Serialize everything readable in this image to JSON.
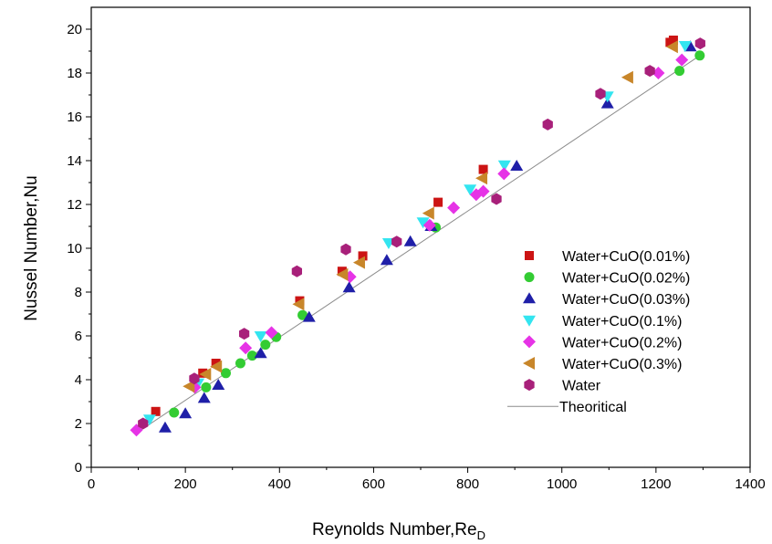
{
  "chart_data": {
    "type": "scatter",
    "xlabel": "Reynolds Number,Re",
    "xlabel_subscript": "D",
    "ylabel": "Nussel Number,Nu",
    "xlim": [
      0,
      1400
    ],
    "ylim": [
      0,
      21
    ],
    "x_ticks": [
      0,
      200,
      400,
      600,
      800,
      1000,
      1200,
      1400
    ],
    "y_ticks": [
      0,
      2,
      4,
      6,
      8,
      10,
      12,
      14,
      16,
      18,
      20
    ],
    "legend_position": "right",
    "grid": false,
    "series": [
      {
        "name": "Water+CuO(0.01%)",
        "marker": "square",
        "color": "#cc1414",
        "points": [
          [
            137,
            2.55
          ],
          [
            237,
            4.3
          ],
          [
            265,
            4.75
          ],
          [
            443,
            7.6
          ],
          [
            533,
            8.95
          ],
          [
            577,
            9.65
          ],
          [
            737,
            12.1
          ],
          [
            833,
            13.6
          ],
          [
            1230,
            19.4
          ],
          [
            1237,
            19.5
          ]
        ]
      },
      {
        "name": "Water+CuO(0.02%)",
        "marker": "circle",
        "color": "#33cc33",
        "points": [
          [
            176,
            2.5
          ],
          [
            244,
            3.65
          ],
          [
            286,
            4.3
          ],
          [
            317,
            4.75
          ],
          [
            342,
            5.1
          ],
          [
            370,
            5.6
          ],
          [
            393,
            5.95
          ],
          [
            449,
            6.95
          ],
          [
            732,
            10.95
          ],
          [
            1250,
            18.1
          ],
          [
            1293,
            18.8
          ]
        ]
      },
      {
        "name": "Water+CuO(0.03%)",
        "marker": "triangle-up",
        "color": "#1f1fa8",
        "points": [
          [
            157,
            1.8
          ],
          [
            200,
            2.45
          ],
          [
            240,
            3.15
          ],
          [
            270,
            3.75
          ],
          [
            360,
            5.2
          ],
          [
            463,
            6.85
          ],
          [
            548,
            8.2
          ],
          [
            628,
            9.45
          ],
          [
            678,
            10.3
          ],
          [
            722,
            11.0
          ],
          [
            904,
            13.75
          ],
          [
            1097,
            16.6
          ],
          [
            1273,
            19.2
          ]
        ]
      },
      {
        "name": "Water+CuO(0.1%)",
        "marker": "triangle-down",
        "color": "#33e5f0",
        "points": [
          [
            124,
            2.2
          ],
          [
            227,
            3.85
          ],
          [
            360,
            6.0
          ],
          [
            632,
            10.25
          ],
          [
            705,
            11.2
          ],
          [
            805,
            12.7
          ],
          [
            878,
            13.8
          ],
          [
            1097,
            16.95
          ],
          [
            1262,
            19.25
          ]
        ]
      },
      {
        "name": "Water+CuO(0.2%)",
        "marker": "diamond",
        "color": "#e633e6",
        "points": [
          [
            96,
            1.7
          ],
          [
            220,
            3.65
          ],
          [
            328,
            5.45
          ],
          [
            383,
            6.15
          ],
          [
            550,
            8.7
          ],
          [
            719,
            11.05
          ],
          [
            770,
            11.85
          ],
          [
            818,
            12.45
          ],
          [
            833,
            12.6
          ],
          [
            877,
            13.4
          ],
          [
            1205,
            18.0
          ],
          [
            1255,
            18.6
          ]
        ]
      },
      {
        "name": "Water+CuO(0.3%)",
        "marker": "triangle-left",
        "color": "#c8862a",
        "points": [
          [
            208,
            3.7
          ],
          [
            243,
            4.25
          ],
          [
            266,
            4.6
          ],
          [
            441,
            7.45
          ],
          [
            534,
            8.8
          ],
          [
            570,
            9.35
          ],
          [
            717,
            11.6
          ],
          [
            830,
            13.2
          ],
          [
            1140,
            17.8
          ],
          [
            1235,
            19.2
          ]
        ]
      },
      {
        "name": "Water",
        "marker": "hexagon",
        "color": "#a8207a",
        "points": [
          [
            110,
            2.0
          ],
          [
            219,
            4.05
          ],
          [
            325,
            6.1
          ],
          [
            437,
            8.95
          ],
          [
            541,
            9.95
          ],
          [
            649,
            10.3
          ],
          [
            861,
            12.25
          ],
          [
            970,
            15.65
          ],
          [
            1082,
            17.05
          ],
          [
            1187,
            18.1
          ],
          [
            1294,
            19.35
          ]
        ]
      }
    ],
    "line_series": [
      {
        "name": "Theoritical",
        "color": "#8c8c8c",
        "points": [
          [
            95,
            1.55
          ],
          [
            1290,
            18.75
          ]
        ]
      }
    ]
  }
}
